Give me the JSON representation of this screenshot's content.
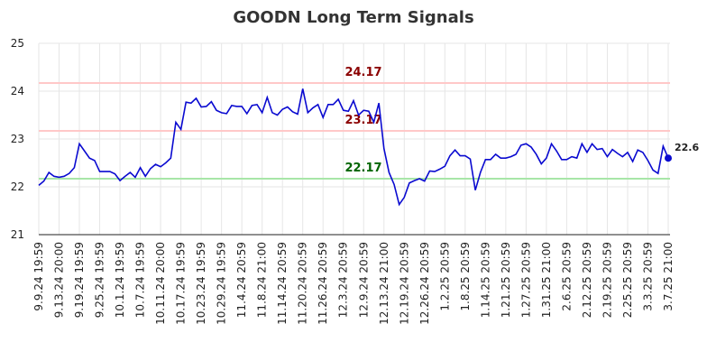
{
  "chart_data": {
    "type": "line",
    "title": "GOODN Long Term Signals",
    "categories": [
      "9.9.24 19:59",
      null,
      null,
      null,
      "9.13.24 20:00",
      null,
      null,
      null,
      "9.19.24 19:59",
      null,
      null,
      null,
      "9.25.24 19:59",
      null,
      null,
      null,
      "10.1.24 19:59",
      null,
      null,
      null,
      "10.7.24 19:59",
      null,
      null,
      null,
      "10.11.24 20:00",
      null,
      null,
      null,
      "10.17.24 19:59",
      null,
      null,
      null,
      "10.23.24 19:59",
      null,
      null,
      null,
      "10.29.24 19:59",
      null,
      null,
      null,
      "11.4.24 20:59",
      null,
      null,
      null,
      "11.8.24 21:00",
      null,
      null,
      null,
      "11.14.24 20:59",
      null,
      null,
      null,
      "11.20.24 20:59",
      null,
      null,
      null,
      "11.26.24 20:59",
      null,
      null,
      null,
      "12.3.24 20:59",
      null,
      null,
      null,
      "12.9.24 20:59",
      null,
      null,
      null,
      "12.13.24 21:00",
      null,
      null,
      null,
      "12.19.24 20:59",
      null,
      null,
      null,
      "12.26.24 20:59",
      null,
      null,
      null,
      "1.2.25 20:59",
      null,
      null,
      null,
      "1.8.25 20:59",
      null,
      null,
      null,
      "1.14.25 20:59",
      null,
      null,
      null,
      "1.21.25 20:59",
      null,
      null,
      null,
      "1.27.25 20:59",
      null,
      null,
      null,
      "1.31.25 21:00",
      null,
      null,
      null,
      "2.6.25 20:59",
      null,
      null,
      null,
      "2.12.25 20:59",
      null,
      null,
      null,
      "2.19.25 20:59",
      null,
      null,
      null,
      "2.25.25 20:59",
      null,
      null,
      null,
      "3.3.25 20:59",
      null,
      null,
      null,
      "3.7.25 21:00"
    ],
    "series": [
      {
        "color": "#0a0ad0",
        "values": [
          22.03,
          22.12,
          22.3,
          22.22,
          22.2,
          22.22,
          22.28,
          22.4,
          22.9,
          22.75,
          22.6,
          22.55,
          22.32,
          22.32,
          22.32,
          22.27,
          22.13,
          22.22,
          22.3,
          22.2,
          22.4,
          22.22,
          22.38,
          22.47,
          22.42,
          22.5,
          22.6,
          23.35,
          23.2,
          23.77,
          23.75,
          23.85,
          23.67,
          23.68,
          23.78,
          23.6,
          23.55,
          23.53,
          23.7,
          23.68,
          23.68,
          23.53,
          23.7,
          23.72,
          23.55,
          23.87,
          23.55,
          23.5,
          23.62,
          23.67,
          23.57,
          23.52,
          24.05,
          23.55,
          23.65,
          23.72,
          23.45,
          23.72,
          23.72,
          23.83,
          23.6,
          23.58,
          23.8,
          23.5,
          23.6,
          23.58,
          23.35,
          23.75,
          22.8,
          22.3,
          22.05,
          21.63,
          21.78,
          22.08,
          22.13,
          22.17,
          22.12,
          22.33,
          22.32,
          22.37,
          22.43,
          22.65,
          22.77,
          22.65,
          22.65,
          22.58,
          21.93,
          22.3,
          22.57,
          22.57,
          22.68,
          22.6,
          22.6,
          22.63,
          22.68,
          22.87,
          22.9,
          22.83,
          22.68,
          22.48,
          22.6,
          22.9,
          22.75,
          22.57,
          22.57,
          22.63,
          22.6,
          22.9,
          22.72,
          22.9,
          22.78,
          22.8,
          22.63,
          22.78,
          22.7,
          22.63,
          22.72,
          22.53,
          22.77,
          22.72,
          22.55,
          22.35,
          22.28,
          22.85,
          22.6
        ]
      }
    ],
    "hlines": [
      {
        "value": 24.17,
        "color": "#ffc8c8",
        "label_color": "#8b0000"
      },
      {
        "value": 23.17,
        "color": "#ffc8c8",
        "label_color": "#8b0000"
      },
      {
        "value": 22.17,
        "color": "#a8e6a8",
        "label_color": "#006400"
      }
    ],
    "ylim": [
      21,
      25
    ],
    "yticks": [
      21,
      22,
      23,
      24,
      25
    ],
    "grid": true
  }
}
